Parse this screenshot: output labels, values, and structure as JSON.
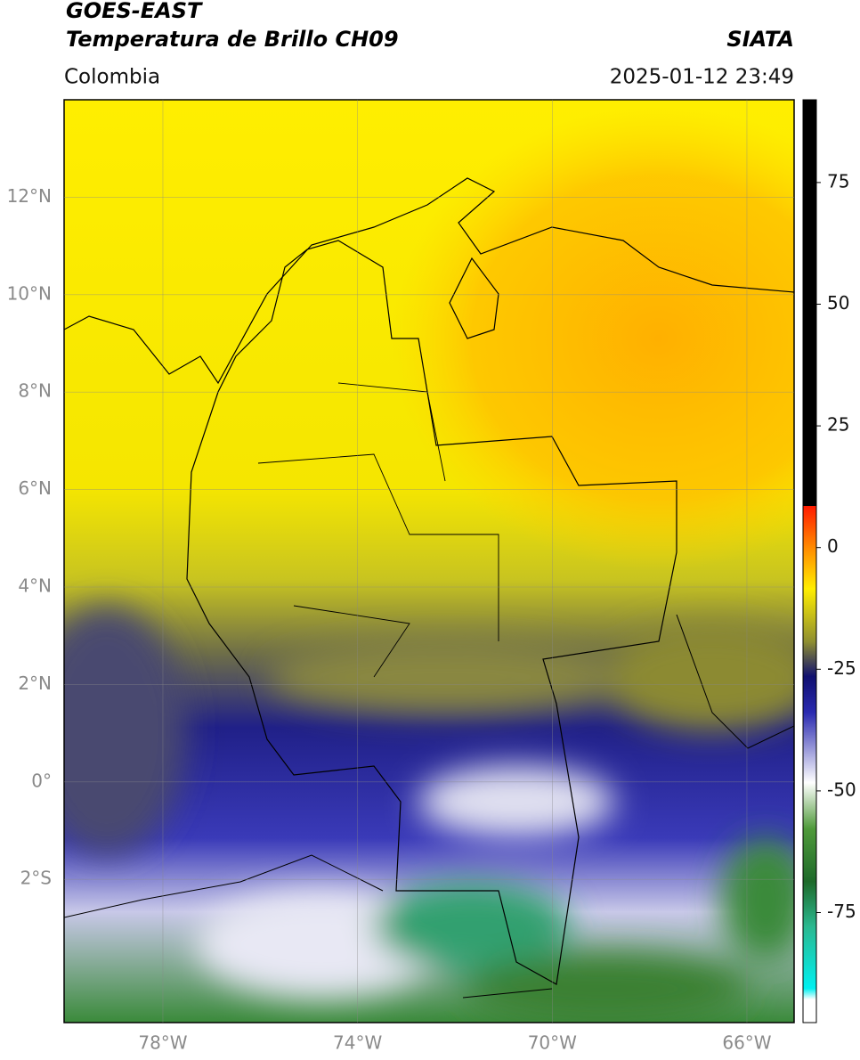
{
  "header": {
    "title": "GOES-EAST",
    "subtitle": "Temperatura de Brillo CH09",
    "source": "SIATA",
    "region": "Colombia",
    "datetime": "2025-01-12 23:49"
  },
  "map": {
    "latlim": [
      -4.94,
      14.0
    ],
    "lonlim": [
      -80.03,
      -65.03
    ],
    "lat_ticks": [
      {
        "value": 12,
        "label": "12°N"
      },
      {
        "value": 10,
        "label": "10°N"
      },
      {
        "value": 8,
        "label": "8°N"
      },
      {
        "value": 6,
        "label": "6°N"
      },
      {
        "value": 4,
        "label": "4°N"
      },
      {
        "value": 2,
        "label": "2°N"
      },
      {
        "value": 0,
        "label": "0°"
      },
      {
        "value": -2,
        "label": "2°S"
      }
    ],
    "lon_ticks": [
      {
        "value": -78,
        "label": "78°W"
      },
      {
        "value": -74,
        "label": "74°W"
      },
      {
        "value": -70,
        "label": "70°W"
      },
      {
        "value": -66,
        "label": "66°W"
      }
    ],
    "grid": true
  },
  "colorbar": {
    "lim": [
      -97.6,
      92
    ],
    "ticks": [
      75,
      50,
      25,
      0,
      -25,
      -50,
      -75
    ]
  }
}
